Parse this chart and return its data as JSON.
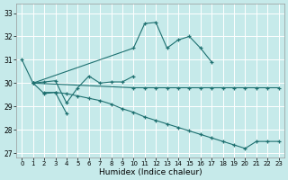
{
  "xlabel": "Humidex (Indice chaleur)",
  "background_color": "#c6eaea",
  "grid_color": "#ffffff",
  "line_color": "#1e7070",
  "xlim": [
    -0.5,
    23.5
  ],
  "ylim": [
    26.8,
    33.4
  ],
  "yticks": [
    27,
    28,
    29,
    30,
    31,
    32,
    33
  ],
  "xtick_labels": [
    "0",
    "1",
    "2",
    "3",
    "4",
    "5",
    "6",
    "7",
    "8",
    "9",
    "10",
    "11",
    "12",
    "13",
    "14",
    "15",
    "16",
    "17",
    "18",
    "19",
    "20",
    "21",
    "22",
    "23"
  ],
  "series": {
    "curve1_x": [
      0,
      1,
      10,
      11,
      12,
      13,
      14,
      15,
      16,
      17
    ],
    "curve1_y": [
      31.0,
      30.0,
      31.5,
      32.55,
      32.6,
      31.5,
      31.85,
      32.0,
      31.5,
      30.9
    ],
    "curve2_x": [
      1,
      2,
      3,
      4,
      5,
      6,
      7,
      8,
      9,
      10
    ],
    "curve2_y": [
      30.0,
      30.05,
      30.1,
      29.15,
      29.8,
      30.3,
      30.0,
      30.05,
      30.05,
      30.3
    ],
    "curve3_x": [
      2,
      3,
      4
    ],
    "curve3_y": [
      29.6,
      29.6,
      28.7
    ],
    "curve4_x": [
      1,
      2,
      3,
      4,
      5,
      6,
      7,
      8,
      9,
      10,
      11,
      12,
      13,
      14,
      15,
      16,
      17,
      18,
      19,
      20,
      21,
      22,
      23
    ],
    "curve4_y": [
      30.0,
      29.55,
      29.6,
      29.55,
      29.45,
      29.35,
      29.25,
      29.1,
      28.9,
      28.75,
      28.55,
      28.4,
      28.25,
      28.1,
      27.95,
      27.8,
      27.65,
      27.5,
      27.35,
      27.2,
      27.5,
      27.5,
      27.5
    ],
    "curve5_x": [
      1,
      10,
      11,
      12,
      13,
      14,
      15,
      16,
      17,
      18,
      19,
      20,
      21,
      22,
      23
    ],
    "curve5_y": [
      30.0,
      29.8,
      29.8,
      29.8,
      29.8,
      29.8,
      29.8,
      29.8,
      29.8,
      29.8,
      29.8,
      29.8,
      29.8,
      29.8,
      29.8
    ]
  }
}
